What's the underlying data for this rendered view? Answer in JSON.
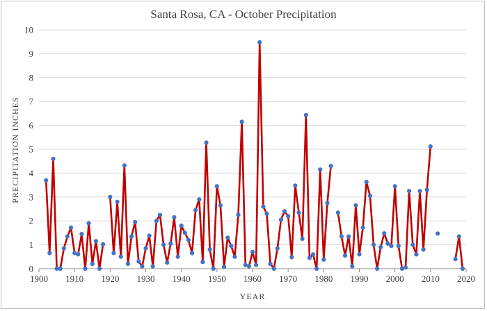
{
  "chart_data": {
    "type": "line",
    "title": "Santa Rosa, CA -  October Precipitation",
    "xlabel": "YEAR",
    "ylabel": "PRECIPITATION  INCHES",
    "xlim": [
      1900,
      2020
    ],
    "ylim": [
      0,
      10
    ],
    "xticks": [
      1900,
      1910,
      1920,
      1930,
      1940,
      1950,
      1960,
      1970,
      1980,
      1990,
      2000,
      2010,
      2020
    ],
    "yticks": [
      0,
      1,
      2,
      3,
      4,
      5,
      6,
      7,
      8,
      9,
      10
    ],
    "grid": "horizontal",
    "series": [
      {
        "name": "October Precipitation",
        "line_color": "#c00000",
        "marker_color": "#4472c4",
        "points": [
          [
            1902,
            3.7
          ],
          [
            1903,
            0.65
          ],
          [
            1904,
            4.6
          ],
          [
            1905,
            0.0
          ],
          [
            1906,
            0.0
          ],
          [
            1907,
            0.85
          ],
          [
            1908,
            1.35
          ],
          [
            1909,
            1.72
          ],
          [
            1910,
            0.65
          ],
          [
            1911,
            0.6
          ],
          [
            1912,
            1.45
          ],
          [
            1913,
            0.0
          ],
          [
            1914,
            1.9
          ],
          [
            1915,
            0.2
          ],
          [
            1916,
            1.15
          ],
          [
            1917,
            0.0
          ],
          [
            1918,
            1.02
          ],
          null,
          [
            1920,
            3.0
          ],
          [
            1921,
            0.65
          ],
          [
            1922,
            2.8
          ],
          [
            1923,
            0.5
          ],
          [
            1924,
            4.32
          ],
          [
            1925,
            0.2
          ],
          [
            1926,
            1.35
          ],
          [
            1927,
            1.95
          ],
          [
            1928,
            0.3
          ],
          [
            1929,
            0.1
          ],
          [
            1930,
            0.85
          ],
          [
            1931,
            1.38
          ],
          [
            1932,
            0.1
          ],
          [
            1933,
            2.0
          ],
          [
            1934,
            2.25
          ],
          [
            1935,
            1.0
          ],
          [
            1936,
            0.25
          ],
          [
            1937,
            1.05
          ],
          [
            1938,
            2.15
          ],
          [
            1939,
            0.5
          ],
          [
            1940,
            1.8
          ],
          [
            1941,
            1.5
          ],
          [
            1942,
            1.2
          ],
          [
            1943,
            0.65
          ],
          [
            1944,
            2.45
          ],
          [
            1945,
            2.9
          ],
          [
            1946,
            0.28
          ],
          [
            1947,
            5.28
          ],
          [
            1948,
            0.8
          ],
          [
            1949,
            0.0
          ],
          [
            1950,
            3.45
          ],
          [
            1951,
            2.65
          ],
          [
            1952,
            0.08
          ],
          [
            1953,
            1.3
          ],
          [
            1954,
            0.95
          ],
          [
            1955,
            0.5
          ],
          [
            1956,
            2.25
          ],
          [
            1957,
            6.15
          ],
          [
            1958,
            0.15
          ],
          [
            1959,
            0.1
          ],
          [
            1960,
            0.7
          ],
          [
            1961,
            0.15
          ],
          [
            1962,
            9.48
          ],
          [
            1963,
            2.6
          ],
          [
            1964,
            2.3
          ],
          [
            1965,
            0.2
          ],
          [
            1966,
            0.0
          ],
          [
            1967,
            0.85
          ],
          [
            1968,
            2.05
          ],
          [
            1969,
            2.4
          ],
          [
            1970,
            2.2
          ],
          [
            1971,
            0.48
          ],
          [
            1972,
            3.48
          ],
          [
            1973,
            2.35
          ],
          [
            1974,
            1.25
          ],
          [
            1975,
            6.43
          ],
          [
            1976,
            0.45
          ],
          [
            1977,
            0.6
          ],
          [
            1978,
            0.0
          ],
          [
            1979,
            4.15
          ],
          [
            1980,
            0.38
          ],
          [
            1981,
            2.75
          ],
          [
            1982,
            4.3
          ],
          null,
          [
            1984,
            2.35
          ],
          [
            1985,
            1.35
          ],
          [
            1986,
            0.55
          ],
          [
            1987,
            1.35
          ],
          [
            1988,
            0.1
          ],
          [
            1989,
            2.65
          ],
          [
            1990,
            0.6
          ],
          [
            1991,
            1.72
          ],
          [
            1992,
            3.63
          ],
          [
            1993,
            3.05
          ],
          [
            1994,
            1.0
          ],
          [
            1995,
            0.0
          ],
          [
            1996,
            0.9
          ],
          [
            1997,
            1.48
          ],
          [
            1998,
            1.05
          ],
          [
            1999,
            0.95
          ],
          [
            2000,
            3.45
          ],
          [
            2001,
            0.95
          ],
          [
            2002,
            0.0
          ],
          [
            2003,
            0.05
          ],
          [
            2004,
            3.25
          ],
          [
            2005,
            1.0
          ],
          [
            2006,
            0.6
          ],
          [
            2007,
            3.25
          ],
          [
            2008,
            0.8
          ],
          [
            2009,
            3.3
          ],
          [
            2010,
            5.12
          ],
          null,
          [
            2012,
            1.47
          ],
          null,
          [
            2017,
            0.4
          ],
          [
            2018,
            1.35
          ],
          [
            2019,
            0.0
          ]
        ]
      }
    ]
  }
}
